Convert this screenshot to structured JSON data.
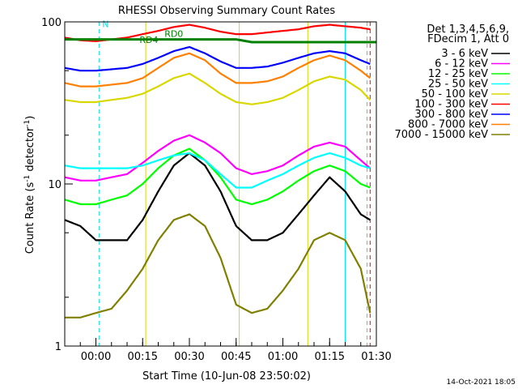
{
  "chart_data": {
    "type": "line",
    "title": "RHESSI Observing Summary Count Rates",
    "xlabel": "Start Time (10-Jun-08 23:50:02)",
    "ylabel": "Count Rate (s",
    "ylabel_sup": "-1",
    "ylabel_tail": " detector",
    "ylabel_sup2": "-1",
    "ylabel_close": ")",
    "x_unit": "minutes after 23:50:02",
    "xlim": [
      0,
      100
    ],
    "ylim": [
      1,
      100
    ],
    "y_scale": "log",
    "grid": false,
    "y_tick_labels": [
      {
        "value": 100,
        "label": "100"
      },
      {
        "value": 10,
        "label": "10"
      },
      {
        "value": 1,
        "label": "1"
      }
    ],
    "x_tick_labels": [
      {
        "value": 10,
        "label": "00:00"
      },
      {
        "value": 25,
        "label": "00:15"
      },
      {
        "value": 40,
        "label": "00:30"
      },
      {
        "value": 55,
        "label": "00:45"
      },
      {
        "value": 70,
        "label": "01:00"
      },
      {
        "value": 85,
        "label": "01:15"
      },
      {
        "value": 100,
        "label": "01:30"
      }
    ],
    "legend_header": [
      "Det 1,3,4,5,6,9,",
      "FDecim 1, Att 0"
    ],
    "legend_position": "right",
    "timestamp": "14-Oct-2021 18:05",
    "annotations": [
      {
        "label": "N",
        "x": 12,
        "y": 93,
        "color": "#00e5ee"
      },
      {
        "label": "RD4",
        "x": 24,
        "y": 74,
        "color": "#008000"
      },
      {
        "label": "RD0",
        "x": 32,
        "y": 81,
        "color": "#008000"
      }
    ],
    "vertical_markers": [
      {
        "x": 11,
        "color": "#00e5ee",
        "dash": true
      },
      {
        "x": 26,
        "color": "#d8d800",
        "dash": false
      },
      {
        "x": 56,
        "color": "#d8d800",
        "dash": false
      },
      {
        "x": 78,
        "color": "#d8d800",
        "dash": false
      },
      {
        "x": 90,
        "color": "#00e5ee",
        "dash": false
      },
      {
        "x": 97,
        "color": "#00e5ee",
        "dash": true
      },
      {
        "x": 98,
        "color": "#ff0000",
        "dash": true
      }
    ],
    "series": [
      {
        "name": "3 - 6 keV",
        "color": "#000000",
        "x": [
          0,
          5,
          10,
          15,
          20,
          25,
          30,
          35,
          40,
          45,
          50,
          55,
          60,
          65,
          70,
          75,
          80,
          85,
          90,
          95,
          98
        ],
        "y": [
          6,
          5.5,
          4.5,
          4.5,
          4.5,
          6,
          9,
          13,
          15.5,
          13,
          9,
          5.5,
          4.5,
          4.5,
          5,
          6.5,
          8.5,
          11,
          9,
          6.5,
          6
        ]
      },
      {
        "name": "6 - 12 keV",
        "color": "#ff00ff",
        "x": [
          0,
          5,
          10,
          15,
          20,
          25,
          30,
          35,
          40,
          45,
          50,
          55,
          60,
          65,
          70,
          75,
          80,
          85,
          90,
          95,
          98
        ],
        "y": [
          11,
          10.5,
          10.5,
          11,
          11.5,
          13.5,
          16,
          18.5,
          20,
          18,
          15.5,
          12.5,
          11.5,
          12,
          13,
          15,
          17,
          18,
          17,
          14,
          12.5
        ]
      },
      {
        "name": "12 - 25 keV",
        "color": "#00ff00",
        "x": [
          0,
          5,
          10,
          15,
          20,
          25,
          30,
          35,
          40,
          45,
          50,
          55,
          60,
          65,
          70,
          75,
          80,
          85,
          90,
          95,
          98
        ],
        "y": [
          8,
          7.5,
          7.5,
          8,
          8.5,
          10,
          12.5,
          15,
          16.5,
          14,
          11,
          8,
          7.5,
          8,
          9,
          10.5,
          12,
          13,
          12,
          10,
          9.5
        ]
      },
      {
        "name": "25 - 50 keV",
        "color": "#00ffff",
        "x": [
          0,
          5,
          10,
          15,
          20,
          25,
          30,
          35,
          40,
          45,
          50,
          55,
          60,
          65,
          70,
          75,
          80,
          85,
          90,
          95,
          98
        ],
        "y": [
          13,
          12.5,
          12.5,
          12.5,
          12.5,
          13,
          14,
          15,
          15.5,
          14,
          11.5,
          9.5,
          9.5,
          10.5,
          11.5,
          13,
          14.5,
          15.5,
          14.5,
          13,
          12.5
        ]
      },
      {
        "name": "50 - 100 keV",
        "color": "#d8d800",
        "x": [
          0,
          5,
          10,
          15,
          20,
          25,
          30,
          35,
          40,
          45,
          50,
          55,
          60,
          65,
          70,
          75,
          80,
          85,
          90,
          95,
          98
        ],
        "y": [
          33,
          32,
          32,
          33,
          34,
          36,
          40,
          45,
          48,
          42,
          36,
          32,
          31,
          32,
          34,
          38,
          43,
          46,
          44,
          38,
          33
        ]
      },
      {
        "name": "100 - 300 keV",
        "color": "#ff0000",
        "x": [
          0,
          5,
          10,
          15,
          20,
          25,
          30,
          35,
          40,
          45,
          50,
          55,
          60,
          65,
          70,
          75,
          80,
          85,
          90,
          95,
          98
        ],
        "y": [
          80,
          77,
          76,
          78,
          80,
          84,
          88,
          93,
          96,
          92,
          87,
          84,
          84,
          86,
          88,
          90,
          94,
          96,
          94,
          92,
          90
        ]
      },
      {
        "name": "300 - 800 keV",
        "color": "#0000ff",
        "x": [
          0,
          5,
          10,
          15,
          20,
          25,
          30,
          35,
          40,
          45,
          50,
          55,
          60,
          65,
          70,
          75,
          80,
          85,
          90,
          95,
          98
        ],
        "y": [
          52,
          50,
          50,
          51,
          52,
          55,
          60,
          66,
          70,
          64,
          57,
          52,
          52,
          53,
          56,
          60,
          64,
          66,
          64,
          58,
          55
        ]
      },
      {
        "name": "800 - 7000 keV",
        "color": "#ff8000",
        "x": [
          0,
          5,
          10,
          15,
          20,
          25,
          30,
          35,
          40,
          45,
          50,
          55,
          60,
          65,
          70,
          75,
          80,
          85,
          90,
          95,
          98
        ],
        "y": [
          42,
          40,
          40,
          41,
          42,
          45,
          52,
          60,
          64,
          58,
          48,
          42,
          42,
          43,
          46,
          52,
          58,
          62,
          58,
          50,
          45
        ]
      },
      {
        "name": "7000 - 15000 keV",
        "color": "#808000",
        "x": [
          0,
          5,
          10,
          15,
          20,
          25,
          30,
          35,
          40,
          45,
          50,
          55,
          60,
          65,
          70,
          75,
          80,
          85,
          90,
          95,
          98
        ],
        "y": [
          1.5,
          1.5,
          1.6,
          1.7,
          2.2,
          3,
          4.5,
          6,
          6.5,
          5.5,
          3.5,
          1.8,
          1.6,
          1.7,
          2.2,
          3,
          4.5,
          5,
          4.5,
          3,
          1.6
        ]
      },
      {
        "name": "",
        "color": "#008000",
        "x": [
          0,
          25,
          30,
          55,
          60,
          100
        ],
        "y": [
          78,
          78,
          78,
          78,
          75,
          75
        ]
      }
    ]
  }
}
